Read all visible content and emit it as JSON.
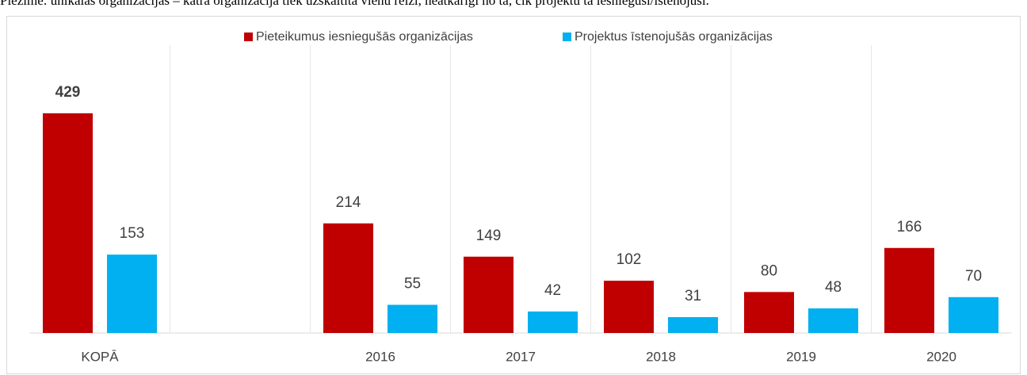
{
  "note": "Piezīme: unikālās organizācijas – katra organizācija tiek uzskaitīta vienu reizi, neatkarīgi no tā, cik projektu tā iesniegusi/īstenojusi.",
  "chart_data": {
    "type": "bar",
    "categories": [
      "KOPĀ",
      null,
      "2016",
      "2017",
      "2018",
      "2019",
      "2020"
    ],
    "series": [
      {
        "name": "Pieteikumus iesniegušās organizācijas",
        "color": "#c00000",
        "values": [
          429,
          null,
          214,
          149,
          102,
          80,
          166
        ]
      },
      {
        "name": "Projektus īstenojušās organizācijas",
        "color": "#00b0f0",
        "values": [
          153,
          null,
          55,
          42,
          31,
          48,
          70
        ]
      }
    ],
    "ylim": [
      0,
      500
    ],
    "legend": "top",
    "grid": true
  }
}
